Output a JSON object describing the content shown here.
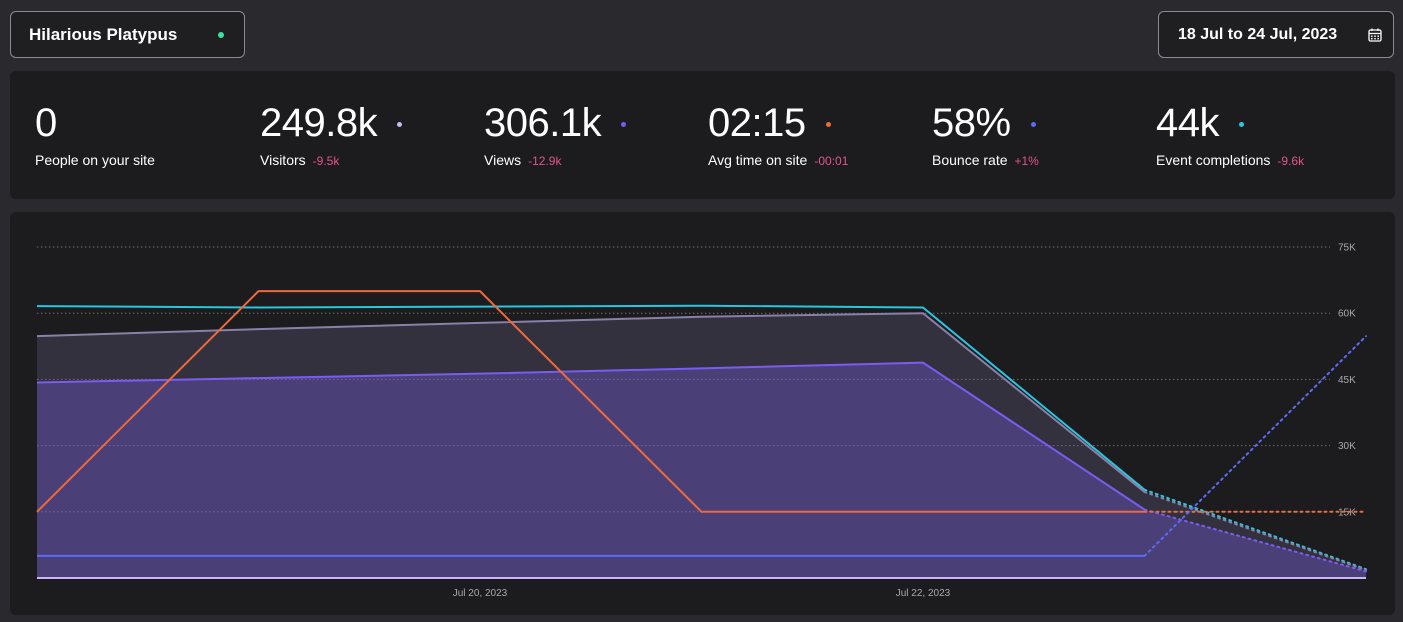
{
  "site_selector": {
    "label": "Hilarious Platypus",
    "live_color": "#3ee0a0"
  },
  "date_range": {
    "label": "18 Jul to 24 Jul, 2023",
    "icon": "calendar-icon"
  },
  "stats": [
    {
      "value": "0",
      "label": "People on your site",
      "delta": "",
      "color": ""
    },
    {
      "value": "249.8k",
      "label": "Visitors",
      "delta": "-9.5k",
      "color": "#c9b8f5"
    },
    {
      "value": "306.1k",
      "label": "Views",
      "delta": "-12.9k",
      "color": "#7b5cf0"
    },
    {
      "value": "02:15",
      "label": "Avg time on site",
      "delta": "-00:01",
      "color": "#ef6a3a"
    },
    {
      "value": "58%",
      "label": "Bounce rate",
      "delta": "+1%",
      "color": "#5b6cf5"
    },
    {
      "value": "44k",
      "label": "Event completions",
      "delta": "-9.6k",
      "color": "#29c6e0"
    }
  ],
  "delta_color": "#e0548e",
  "chart_data": {
    "type": "line",
    "x": [
      "Jul 18, 2023",
      "Jul 19, 2023",
      "Jul 20, 2023",
      "Jul 21, 2023",
      "Jul 22, 2023",
      "Jul 23, 2023",
      "Jul 24, 2023"
    ],
    "x_tick_labels": [
      "Jul 20, 2023",
      "Jul 22, 2023"
    ],
    "y_tick_labels": [
      "75K",
      "60K",
      "45K",
      "30K",
      "15K"
    ],
    "ylim": [
      0,
      75000
    ],
    "grid": true,
    "series": [
      {
        "color": "#29c6e0",
        "values": [
          61600,
          61300,
          61500,
          61700,
          61300,
          20000,
          2000
        ],
        "fill": false,
        "dotted_last": true
      },
      {
        "color": "#8a7fa8",
        "values": [
          54800,
          56400,
          57800,
          59200,
          60000,
          19500,
          1800
        ],
        "fill": true,
        "dotted_last": true
      },
      {
        "color": "#7b5cf0",
        "values": [
          44300,
          45300,
          46300,
          47500,
          48800,
          15500,
          1500
        ],
        "fill": true,
        "dotted_last": true
      },
      {
        "color": "#ef6a3a",
        "values": [
          15000,
          65000,
          65000,
          15000,
          15000,
          15000,
          15000
        ],
        "fill": false,
        "dotted_last": true
      },
      {
        "color": "#5b6cf5",
        "values": [
          5000,
          5000,
          5000,
          5000,
          5000,
          5000,
          54800
        ],
        "fill": false,
        "dotted_last": true
      },
      {
        "color": "#c9b8f5",
        "values": [
          0,
          0,
          0,
          0,
          0,
          0,
          0
        ],
        "fill": false,
        "dotted_last": false
      }
    ]
  }
}
